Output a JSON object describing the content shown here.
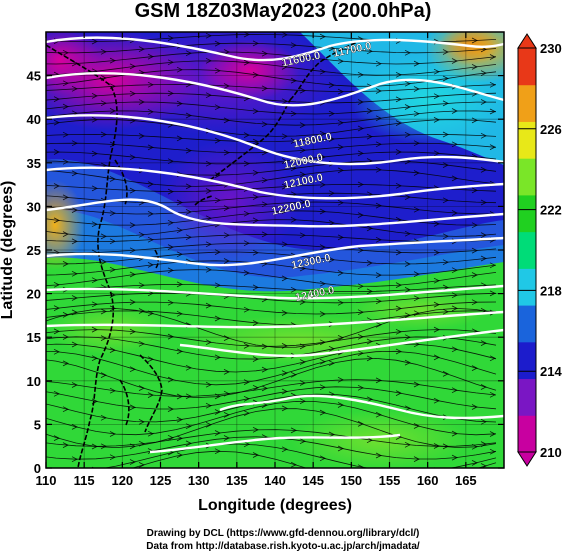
{
  "title": "GSM 18Z03May2023 (200.0hPa)",
  "xaxis": {
    "label": "Longitude (degrees)",
    "range": [
      110,
      170
    ],
    "ticks": [
      "110",
      "115",
      "120",
      "125",
      "130",
      "135",
      "140",
      "145",
      "150",
      "155",
      "160",
      "165"
    ]
  },
  "yaxis": {
    "label": "Latitude (degrees)",
    "range": [
      0,
      50
    ],
    "ticks": [
      "0",
      "5",
      "10",
      "15",
      "20",
      "25",
      "30",
      "35",
      "40",
      "45"
    ]
  },
  "colorbar": {
    "range": [
      210,
      230
    ],
    "ticks": [
      "210",
      "214",
      "218",
      "222",
      "226",
      "230"
    ],
    "colors": [
      "#c800a0",
      "#7a16c4",
      "#1c1ccc",
      "#1a64dc",
      "#20c8e6",
      "#00dc78",
      "#20d020",
      "#7ae628",
      "#e8e818",
      "#f0a018",
      "#e83818"
    ]
  },
  "contours": [
    {
      "label": "11600.0",
      "lon": 143.5,
      "lat": 46.5
    },
    {
      "label": "11700.0",
      "lon": 150.2,
      "lat": 47.6
    },
    {
      "label": "11800.0",
      "lon": 145.0,
      "lat": 37.2
    },
    {
      "label": "12000.0",
      "lon": 143.8,
      "lat": 34.8
    },
    {
      "label": "12100.0",
      "lon": 143.8,
      "lat": 32.5
    },
    {
      "label": "12200.0",
      "lon": 142.2,
      "lat": 29.5
    },
    {
      "label": "12300.0",
      "lon": 144.8,
      "lat": 23.3
    },
    {
      "label": "12400.0",
      "lon": 145.3,
      "lat": 19.6
    }
  ],
  "credits": {
    "line1": "Drawing by DCL (https://www.gfd-dennou.org/library/dcl/)",
    "line2": "Data from http://database.rish.kyoto-u.ac.jp/arch/jmadata/"
  }
}
